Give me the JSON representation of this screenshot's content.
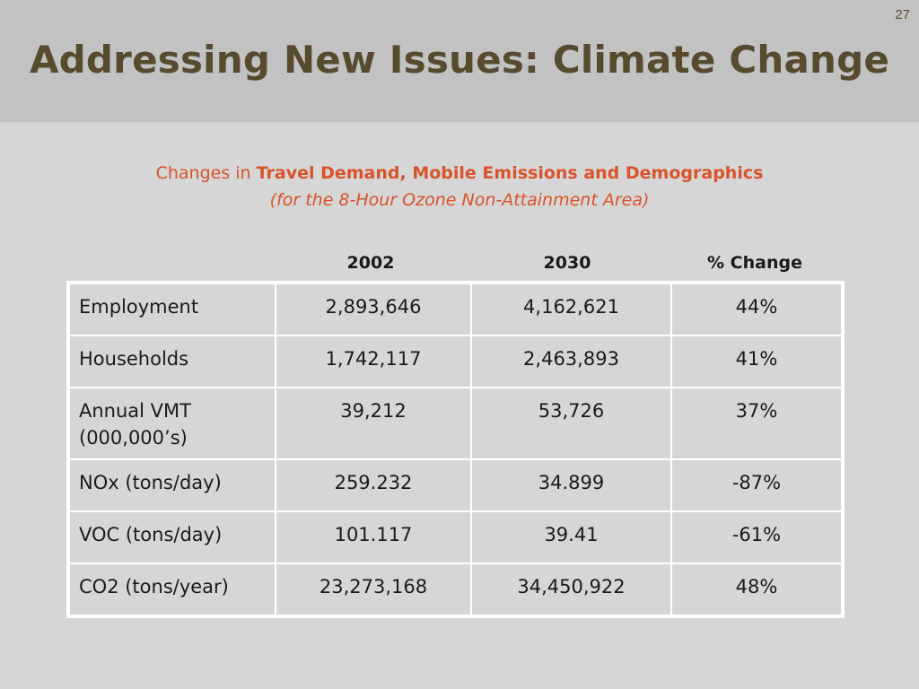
{
  "slide": {
    "number": "27",
    "title": "Addressing New Issues: Climate Change",
    "subtitle_prefix": "Changes in ",
    "subtitle_bold": "Travel Demand, Mobile Emissions and Demographics",
    "subtitle_line2": "(for the 8-Hour Ozone Non-Attainment Area)"
  },
  "table": {
    "columns": [
      "2002",
      "2030",
      "% Change"
    ],
    "rows": [
      {
        "label": "Employment",
        "v2002": "2,893,646",
        "v2030": "4,162,621",
        "change": "44%"
      },
      {
        "label": "Households",
        "v2002": "1,742,117",
        "v2030": "2,463,893",
        "change": "41%"
      },
      {
        "label": "Annual VMT (000,000’s)",
        "v2002": "39,212",
        "v2030": "53,726",
        "change": "37%"
      },
      {
        "label": "NOx (tons/day)",
        "v2002": "259.232",
        "v2030": "34.899",
        "change": "-87%"
      },
      {
        "label": "VOC (tons/day)",
        "v2002": "101.117",
        "v2030": "39.41",
        "change": "-61%"
      },
      {
        "label": "CO2 (tons/year)",
        "v2002": "23,273,168",
        "v2030": "34,450,922",
        "change": "48%"
      }
    ]
  }
}
